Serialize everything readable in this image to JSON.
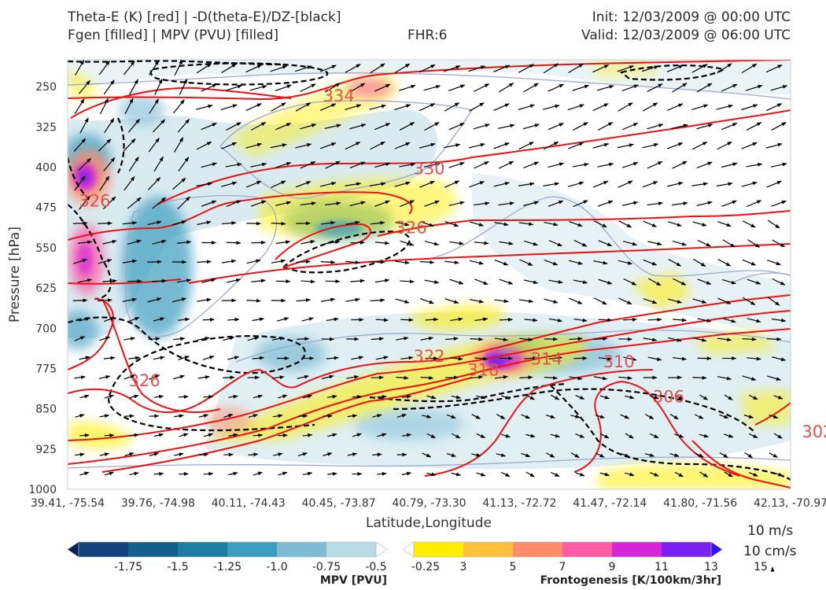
{
  "header": {
    "left_line1": "Theta-E (K) [red] | -D(theta-E)/DZ-[black]",
    "left_line2": "Fgen [filled] | MPV (PVU) [filled]",
    "center": "FHR:6",
    "right_line1": "Init: 12/03/2009 @ 00:00 UTC",
    "right_line2": "Valid: 12/03/2009 @ 06:00 UTC"
  },
  "chart_data": {
    "type": "cross-section",
    "xlabel": "Latitude,Longitude",
    "ylabel": "Pressure [hPa]",
    "x_ticks": [
      "39.41, -75.54",
      "39.76, -74.98",
      "40.11, -74.43",
      "40.45, -73.87",
      "40.79, -73.30",
      "41.13, -72.72",
      "41.47, -72.14",
      "41.80, -71.56",
      "42.13, -70.97"
    ],
    "y_ticks": [
      250,
      325,
      400,
      475,
      550,
      625,
      700,
      775,
      850,
      925,
      1000
    ],
    "ylim": [
      1000,
      200
    ],
    "theta_e_contour_labels": [
      {
        "value": "334",
        "x": 3.0,
        "p": 275
      },
      {
        "value": "330",
        "x": 4.0,
        "p": 410
      },
      {
        "value": "326",
        "x": 3.8,
        "p": 520
      },
      {
        "value": "326",
        "x": 0.3,
        "p": 470
      },
      {
        "value": "326",
        "x": 0.85,
        "p": 805
      },
      {
        "value": "322",
        "x": 4.0,
        "p": 760
      },
      {
        "value": "318",
        "x": 4.6,
        "p": 785
      },
      {
        "value": "314",
        "x": 5.3,
        "p": 765
      },
      {
        "value": "310",
        "x": 6.1,
        "p": 770
      },
      {
        "value": "306",
        "x": 6.65,
        "p": 835
      },
      {
        "value": "302",
        "x": 8.3,
        "p": 900
      }
    ],
    "mpv_colorbar": {
      "label": "MPV [PVU]",
      "ticks": [
        "-1.75",
        "-1.5",
        "-1.25",
        "-1.0",
        "-0.75",
        "-0.5",
        "-0.25"
      ],
      "colors": [
        "#0a1f5c",
        "#12437a",
        "#125f8c",
        "#1c7ca2",
        "#3d9dbf",
        "#7fbcd4",
        "#b9dbe6",
        "#ffffff"
      ]
    },
    "fgen_colorbar": {
      "label": "Frontogenesis [K/100km/3hr]",
      "ticks": [
        "3",
        "5",
        "7",
        "9",
        "11",
        "13",
        "15"
      ],
      "colors": [
        "#ffffff",
        "#ffee00",
        "#ffc040",
        "#ff8c6a",
        "#ff5ca8",
        "#d428d8",
        "#7a20f0",
        "#3010ff"
      ]
    },
    "reference_vectors": {
      "horizontal": "10 m/s",
      "vertical": "10 cm/s"
    },
    "colors": {
      "theta_e": "#ee1111",
      "stability": "#000000",
      "mpv_outline": "#9aaad0"
    }
  }
}
